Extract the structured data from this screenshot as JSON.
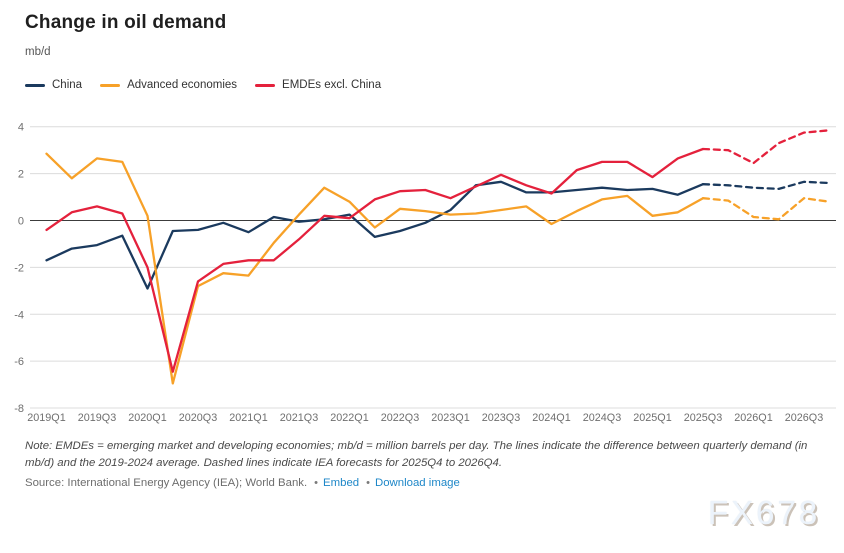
{
  "header": {
    "title": "Change in oil demand",
    "unit": "mb/d"
  },
  "legend": [
    {
      "label": "China",
      "color": "#1b3a5e"
    },
    {
      "label": "Advanced economies",
      "color": "#f7a128"
    },
    {
      "label": "EMDEs excl. China",
      "color": "#e4213c"
    }
  ],
  "note": "Note: EMDEs = emerging market and developing economies; mb/d = million barrels per day. The lines indicate the difference between quarterly demand (in mb/d) and the 2019-2024 average. Dashed lines indicate IEA forecasts for 2025Q4 to 2026Q4.",
  "source": {
    "prefix": "Source: International Energy Agency (IEA); World Bank.",
    "bullet": "•",
    "links": [
      {
        "label": "Embed"
      },
      {
        "label": "Download image"
      }
    ],
    "link_color": "#1e87c8"
  },
  "watermark": "FX678",
  "chart_data": {
    "type": "line",
    "title": "Change in oil demand",
    "ylabel": "mb/d",
    "x": [
      "2019Q1",
      "2019Q2",
      "2019Q3",
      "2019Q4",
      "2020Q1",
      "2020Q2",
      "2020Q3",
      "2020Q4",
      "2021Q1",
      "2021Q2",
      "2021Q3",
      "2021Q4",
      "2022Q1",
      "2022Q2",
      "2022Q3",
      "2022Q4",
      "2023Q1",
      "2023Q2",
      "2023Q3",
      "2023Q4",
      "2024Q1",
      "2024Q2",
      "2024Q3",
      "2024Q4",
      "2025Q1",
      "2025Q2",
      "2025Q3",
      "2025Q4",
      "2026Q1",
      "2026Q2",
      "2026Q3",
      "2026Q4"
    ],
    "x_tick_every": 2,
    "series": [
      {
        "name": "China",
        "color": "#1b3a5e",
        "values": [
          -1.7,
          -1.2,
          -1.05,
          -0.65,
          -2.9,
          -0.45,
          -0.4,
          -0.1,
          -0.5,
          0.15,
          -0.05,
          0.05,
          0.25,
          -0.7,
          -0.45,
          -0.1,
          0.45,
          1.5,
          1.65,
          1.2,
          1.2,
          1.3,
          1.4,
          1.3,
          1.35,
          1.1,
          1.55,
          1.5,
          1.4,
          1.35,
          1.65,
          1.6
        ]
      },
      {
        "name": "Advanced economies",
        "color": "#f7a128",
        "values": [
          2.85,
          1.8,
          2.65,
          2.5,
          0.2,
          -6.95,
          -2.8,
          -2.25,
          -2.35,
          -0.95,
          0.25,
          1.4,
          0.8,
          -0.3,
          0.5,
          0.4,
          0.25,
          0.3,
          0.45,
          0.6,
          -0.15,
          0.4,
          0.9,
          1.05,
          0.2,
          0.35,
          0.95,
          0.85,
          0.15,
          0.05,
          0.95,
          0.8
        ]
      },
      {
        "name": "EMDEs excl. China",
        "color": "#e4213c",
        "values": [
          -0.4,
          0.35,
          0.6,
          0.3,
          -2.0,
          -6.45,
          -2.6,
          -1.85,
          -1.7,
          -1.7,
          -0.8,
          0.2,
          0.1,
          0.9,
          1.25,
          1.3,
          0.95,
          1.45,
          1.95,
          1.5,
          1.15,
          2.15,
          2.5,
          2.5,
          1.85,
          2.65,
          3.05,
          3.0,
          2.45,
          3.3,
          3.75,
          3.85
        ]
      }
    ],
    "forecast_start_index": 26,
    "forecast_note": "Dashed lines are IEA forecasts for 2025Q4 to 2026Q4",
    "ylim": [
      -8,
      4.6
    ],
    "yticks": [
      4,
      2,
      0,
      -2,
      -4,
      -6,
      -8
    ],
    "grid": true,
    "grid_color": "#dcdcdc",
    "zero_line": true,
    "zero_line_color": "#3c3c3c",
    "tick_color": "#6f6f6f",
    "legend_position": "top-left"
  }
}
